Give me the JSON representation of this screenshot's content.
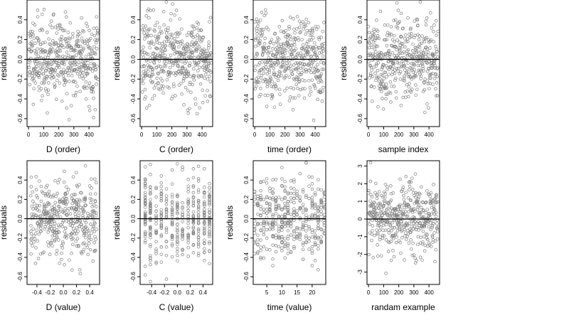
{
  "chart_data": [
    {
      "type": "scatter",
      "xlabel": "D (order)",
      "ylabel": "residuals",
      "xlim": [
        -10,
        470
      ],
      "ylim": [
        -0.68,
        0.6
      ],
      "xticks": [
        0,
        100,
        200,
        300,
        400
      ],
      "yticks": [
        -0.6,
        -0.4,
        -0.2,
        0,
        0.2,
        0.4
      ],
      "xtick_labels": [
        "0",
        "100",
        "200",
        "300",
        "400"
      ],
      "ytick_labels": [
        "-0.6",
        "-0.4",
        "-0.2",
        "0.0",
        "0.2",
        "0.4"
      ],
      "hline": 0,
      "gen": "index",
      "n": 460,
      "seed": 11
    },
    {
      "type": "scatter",
      "xlabel": "C (order)",
      "ylabel": "residuals",
      "xlim": [
        -10,
        470
      ],
      "ylim": [
        -0.68,
        0.6
      ],
      "xticks": [
        0,
        100,
        200,
        300,
        400
      ],
      "yticks": [
        -0.6,
        -0.4,
        -0.2,
        0,
        0.2,
        0.4
      ],
      "xtick_labels": [
        "0",
        "100",
        "200",
        "300",
        "400"
      ],
      "ytick_labels": [
        "-0.6",
        "-0.4",
        "-0.2",
        "0.0",
        "0.2",
        "0.4"
      ],
      "hline": 0,
      "gen": "index",
      "n": 460,
      "seed": 23
    },
    {
      "type": "scatter",
      "xlabel": "time (order)",
      "ylabel": "residuals",
      "xlim": [
        -10,
        470
      ],
      "ylim": [
        -0.68,
        0.6
      ],
      "xticks": [
        0,
        100,
        200,
        300,
        400
      ],
      "yticks": [
        -0.6,
        -0.4,
        -0.2,
        0,
        0.2,
        0.4
      ],
      "xtick_labels": [
        "0",
        "100",
        "200",
        "300",
        "400"
      ],
      "ytick_labels": [
        "-0.6",
        "-0.4",
        "-0.2",
        "0.0",
        "0.2",
        "0.4"
      ],
      "hline": 0,
      "gen": "index",
      "n": 460,
      "seed": 37
    },
    {
      "type": "scatter",
      "xlabel": "sample index",
      "ylabel": "residuals",
      "xlim": [
        -10,
        470
      ],
      "ylim": [
        -0.68,
        0.6
      ],
      "xticks": [
        0,
        100,
        200,
        300,
        400
      ],
      "yticks": [
        -0.6,
        -0.4,
        -0.2,
        0,
        0.2,
        0.4
      ],
      "xtick_labels": [
        "0",
        "100",
        "200",
        "300",
        "400"
      ],
      "ytick_labels": [
        "-0.6",
        "-0.4",
        "-0.2",
        "0.0",
        "0.2",
        "0.4"
      ],
      "hline": 0,
      "gen": "index",
      "n": 460,
      "seed": 41
    },
    {
      "type": "scatter",
      "xlabel": "D (value)",
      "ylabel": "residuals",
      "xlim": [
        -0.55,
        0.55
      ],
      "ylim": [
        -0.68,
        0.6
      ],
      "xticks": [
        -0.4,
        -0.2,
        0,
        0.2,
        0.4
      ],
      "yticks": [
        -0.6,
        -0.4,
        -0.2,
        0,
        0.2,
        0.4
      ],
      "xtick_labels": [
        "-0.4",
        "-0.2",
        "0.0",
        "0.2",
        "0.4"
      ],
      "ytick_labels": [
        "-0.6",
        "-0.4",
        "-0.2",
        "0.0",
        "0.2",
        "0.4"
      ],
      "hline": 0,
      "gen": "continuous",
      "n": 420,
      "seed": 53
    },
    {
      "type": "scatter",
      "xlabel": "C (value)",
      "ylabel": "residuals",
      "xlim": [
        -0.58,
        0.55
      ],
      "ylim": [
        -0.68,
        0.6
      ],
      "xticks": [
        -0.4,
        -0.2,
        0,
        0.2,
        0.4
      ],
      "yticks": [
        -0.6,
        -0.4,
        -0.2,
        0,
        0.2,
        0.4
      ],
      "xtick_labels": [
        "-0.4",
        "-0.2",
        "0.0",
        "0.2",
        "0.4"
      ],
      "ytick_labels": [
        "-0.6",
        "-0.4",
        "-0.2",
        "0.0",
        "0.2",
        "0.4"
      ],
      "hline": 0,
      "gen": "columns",
      "columns": [
        -0.5,
        -0.42,
        -0.33,
        -0.25,
        -0.17,
        -0.08,
        0,
        0.08,
        0.17,
        0.25,
        0.33,
        0.42,
        0.5
      ],
      "n": 420,
      "seed": 67
    },
    {
      "type": "scatter",
      "xlabel": "time (value)",
      "ylabel": "residuals",
      "xlim": [
        0.5,
        24.5
      ],
      "ylim": [
        -0.68,
        0.6
      ],
      "xticks": [
        5,
        10,
        15,
        20
      ],
      "yticks": [
        -0.6,
        -0.4,
        -0.2,
        0,
        0.2,
        0.4
      ],
      "xtick_labels": [
        "5",
        "10",
        "15",
        "20"
      ],
      "ytick_labels": [
        "-0.6",
        "-0.4",
        "-0.2",
        "0.0",
        "0.2",
        "0.4"
      ],
      "hline": 0,
      "gen": "columns",
      "columns": [
        1,
        2,
        3,
        4,
        5,
        6,
        7,
        8,
        9,
        10,
        11,
        12,
        13,
        14,
        15,
        16,
        17,
        18,
        19,
        20,
        21,
        22,
        23,
        24
      ],
      "n": 420,
      "seed": 79
    },
    {
      "type": "scatter",
      "xlabel": "randam example",
      "ylabel": "",
      "xlim": [
        -10,
        470
      ],
      "ylim": [
        -3.7,
        3.3
      ],
      "xticks": [
        0,
        100,
        200,
        300,
        400
      ],
      "yticks": [
        -3,
        -2,
        -1,
        0,
        1,
        2,
        3
      ],
      "xtick_labels": [
        "0",
        "100",
        "200",
        "300",
        "400"
      ],
      "ytick_labels": [
        "-3",
        "-2",
        "-1",
        "0",
        "1",
        "2",
        "3"
      ],
      "hline": 0,
      "gen": "index",
      "n": 460,
      "seed": 97,
      "scale": 5.2
    }
  ],
  "colors": {
    "points": "#7f7f7f",
    "axis": "#000000",
    "zero_line": "#000000"
  }
}
